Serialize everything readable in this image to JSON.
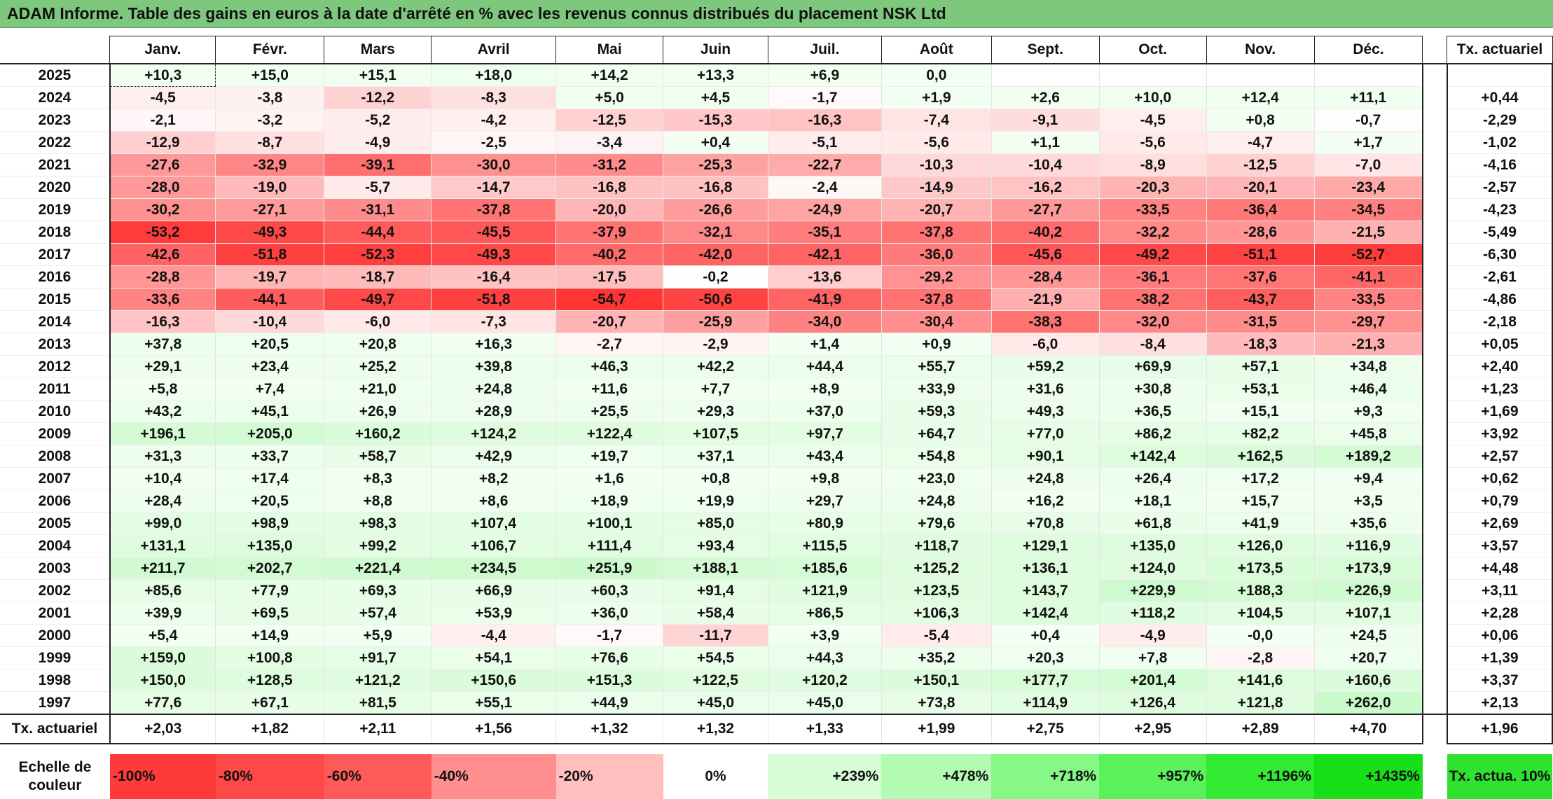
{
  "title": "ADAM Informe. Table des gains en euros à la date d'arrêté en % avec les revenus connus distribués du placement NSK Ltd",
  "months": [
    "Janv.",
    "Févr.",
    "Mars",
    "Avril",
    "Mai",
    "Juin",
    "Juil.",
    "Août",
    "Sept.",
    "Oct.",
    "Nov.",
    "Déc."
  ],
  "annual_header": "Tx. actuariel",
  "rows": [
    {
      "year": "2025",
      "values": [
        "+10,3",
        "+15,0",
        "+15,1",
        "+18,0",
        "+14,2",
        "+13,3",
        "+6,9",
        "0,0",
        "",
        "",
        "",
        ""
      ],
      "annual": ""
    },
    {
      "year": "2024",
      "values": [
        "-4,5",
        "-3,8",
        "-12,2",
        "-8,3",
        "+5,0",
        "+4,5",
        "-1,7",
        "+1,9",
        "+2,6",
        "+10,0",
        "+12,4",
        "+11,1"
      ],
      "annual": "+0,44"
    },
    {
      "year": "2023",
      "values": [
        "-2,1",
        "-3,2",
        "-5,2",
        "-4,2",
        "-12,5",
        "-15,3",
        "-16,3",
        "-7,4",
        "-9,1",
        "-4,5",
        "+0,8",
        "-0,7"
      ],
      "annual": "-2,29"
    },
    {
      "year": "2022",
      "values": [
        "-12,9",
        "-8,7",
        "-4,9",
        "-2,5",
        "-3,4",
        "+0,4",
        "-5,1",
        "-5,6",
        "+1,1",
        "-5,6",
        "-4,7",
        "+1,7"
      ],
      "annual": "-1,02"
    },
    {
      "year": "2021",
      "values": [
        "-27,6",
        "-32,9",
        "-39,1",
        "-30,0",
        "-31,2",
        "-25,3",
        "-22,7",
        "-10,3",
        "-10,4",
        "-8,9",
        "-12,5",
        "-7,0"
      ],
      "annual": "-4,16"
    },
    {
      "year": "2020",
      "values": [
        "-28,0",
        "-19,0",
        "-5,7",
        "-14,7",
        "-16,8",
        "-16,8",
        "-2,4",
        "-14,9",
        "-16,2",
        "-20,3",
        "-20,1",
        "-23,4"
      ],
      "annual": "-2,57"
    },
    {
      "year": "2019",
      "values": [
        "-30,2",
        "-27,1",
        "-31,1",
        "-37,8",
        "-20,0",
        "-26,6",
        "-24,9",
        "-20,7",
        "-27,7",
        "-33,5",
        "-36,4",
        "-34,5"
      ],
      "annual": "-4,23"
    },
    {
      "year": "2018",
      "values": [
        "-53,2",
        "-49,3",
        "-44,4",
        "-45,5",
        "-37,9",
        "-32,1",
        "-35,1",
        "-37,8",
        "-40,2",
        "-32,2",
        "-28,6",
        "-21,5"
      ],
      "annual": "-5,49"
    },
    {
      "year": "2017",
      "values": [
        "-42,6",
        "-51,8",
        "-52,3",
        "-49,3",
        "-40,2",
        "-42,0",
        "-42,1",
        "-36,0",
        "-45,6",
        "-49,2",
        "-51,1",
        "-52,7"
      ],
      "annual": "-6,30"
    },
    {
      "year": "2016",
      "values": [
        "-28,8",
        "-19,7",
        "-18,7",
        "-16,4",
        "-17,5",
        "-0,2",
        "-13,6",
        "-29,2",
        "-28,4",
        "-36,1",
        "-37,6",
        "-41,1"
      ],
      "annual": "-2,61"
    },
    {
      "year": "2015",
      "values": [
        "-33,6",
        "-44,1",
        "-49,7",
        "-51,8",
        "-54,7",
        "-50,6",
        "-41,9",
        "-37,8",
        "-21,9",
        "-38,2",
        "-43,7",
        "-33,5"
      ],
      "annual": "-4,86"
    },
    {
      "year": "2014",
      "values": [
        "-16,3",
        "-10,4",
        "-6,0",
        "-7,3",
        "-20,7",
        "-25,9",
        "-34,0",
        "-30,4",
        "-38,3",
        "-32,0",
        "-31,5",
        "-29,7"
      ],
      "annual": "-2,18"
    },
    {
      "year": "2013",
      "values": [
        "+37,8",
        "+20,5",
        "+20,8",
        "+16,3",
        "-2,7",
        "-2,9",
        "+1,4",
        "+0,9",
        "-6,0",
        "-8,4",
        "-18,3",
        "-21,3"
      ],
      "annual": "+0,05"
    },
    {
      "year": "2012",
      "values": [
        "+29,1",
        "+23,4",
        "+25,2",
        "+39,8",
        "+46,3",
        "+42,2",
        "+44,4",
        "+55,7",
        "+59,2",
        "+69,9",
        "+57,1",
        "+34,8"
      ],
      "annual": "+2,40"
    },
    {
      "year": "2011",
      "values": [
        "+5,8",
        "+7,4",
        "+21,0",
        "+24,8",
        "+11,6",
        "+7,7",
        "+8,9",
        "+33,9",
        "+31,6",
        "+30,8",
        "+53,1",
        "+46,4"
      ],
      "annual": "+1,23"
    },
    {
      "year": "2010",
      "values": [
        "+43,2",
        "+45,1",
        "+26,9",
        "+28,9",
        "+25,5",
        "+29,3",
        "+37,0",
        "+59,3",
        "+49,3",
        "+36,5",
        "+15,1",
        "+9,3"
      ],
      "annual": "+1,69"
    },
    {
      "year": "2009",
      "values": [
        "+196,1",
        "+205,0",
        "+160,2",
        "+124,2",
        "+122,4",
        "+107,5",
        "+97,7",
        "+64,7",
        "+77,0",
        "+86,2",
        "+82,2",
        "+45,8"
      ],
      "annual": "+3,92"
    },
    {
      "year": "2008",
      "values": [
        "+31,3",
        "+33,7",
        "+58,7",
        "+42,9",
        "+19,7",
        "+37,1",
        "+43,4",
        "+54,8",
        "+90,1",
        "+142,4",
        "+162,5",
        "+189,2"
      ],
      "annual": "+2,57"
    },
    {
      "year": "2007",
      "values": [
        "+10,4",
        "+17,4",
        "+8,3",
        "+8,2",
        "+1,6",
        "+0,8",
        "+9,8",
        "+23,0",
        "+24,8",
        "+26,4",
        "+17,2",
        "+9,4"
      ],
      "annual": "+0,62"
    },
    {
      "year": "2006",
      "values": [
        "+28,4",
        "+20,5",
        "+8,8",
        "+8,6",
        "+18,9",
        "+19,9",
        "+29,7",
        "+24,8",
        "+16,2",
        "+18,1",
        "+15,7",
        "+3,5"
      ],
      "annual": "+0,79"
    },
    {
      "year": "2005",
      "values": [
        "+99,0",
        "+98,9",
        "+98,3",
        "+107,4",
        "+100,1",
        "+85,0",
        "+80,9",
        "+79,6",
        "+70,8",
        "+61,8",
        "+41,9",
        "+35,6"
      ],
      "annual": "+2,69"
    },
    {
      "year": "2004",
      "values": [
        "+131,1",
        "+135,0",
        "+99,2",
        "+106,7",
        "+111,4",
        "+93,4",
        "+115,5",
        "+118,7",
        "+129,1",
        "+135,0",
        "+126,0",
        "+116,9"
      ],
      "annual": "+3,57"
    },
    {
      "year": "2003",
      "values": [
        "+211,7",
        "+202,7",
        "+221,4",
        "+234,5",
        "+251,9",
        "+188,1",
        "+185,6",
        "+125,2",
        "+136,1",
        "+124,0",
        "+173,5",
        "+173,9"
      ],
      "annual": "+4,48"
    },
    {
      "year": "2002",
      "values": [
        "+85,6",
        "+77,9",
        "+69,3",
        "+66,9",
        "+60,3",
        "+91,4",
        "+121,9",
        "+123,5",
        "+143,7",
        "+229,9",
        "+188,3",
        "+226,9"
      ],
      "annual": "+3,11"
    },
    {
      "year": "2001",
      "values": [
        "+39,9",
        "+69,5",
        "+57,4",
        "+53,9",
        "+36,0",
        "+58,4",
        "+86,5",
        "+106,3",
        "+142,4",
        "+118,2",
        "+104,5",
        "+107,1"
      ],
      "annual": "+2,28"
    },
    {
      "year": "2000",
      "values": [
        "+5,4",
        "+14,9",
        "+5,9",
        "-4,4",
        "-1,7",
        "-11,7",
        "+3,9",
        "-5,4",
        "+0,4",
        "-4,9",
        "-0,0",
        "+24,5"
      ],
      "annual": "+0,06"
    },
    {
      "year": "1999",
      "values": [
        "+159,0",
        "+100,8",
        "+91,7",
        "+54,1",
        "+76,6",
        "+54,5",
        "+44,3",
        "+35,2",
        "+20,3",
        "+7,8",
        "-2,8",
        "+20,7"
      ],
      "annual": "+1,39"
    },
    {
      "year": "1998",
      "values": [
        "+150,0",
        "+128,5",
        "+121,2",
        "+150,6",
        "+151,3",
        "+122,5",
        "+120,2",
        "+150,1",
        "+177,7",
        "+201,4",
        "+141,6",
        "+160,6"
      ],
      "annual": "+3,37"
    },
    {
      "year": "1997",
      "values": [
        "+77,6",
        "+67,1",
        "+81,5",
        "+55,1",
        "+44,9",
        "+45,0",
        "+45,0",
        "+73,8",
        "+114,9",
        "+126,4",
        "+121,8",
        "+262,0"
      ],
      "annual": "+2,13"
    }
  ],
  "footer": {
    "label": "Tx. actuariel",
    "values": [
      "+2,03",
      "+1,82",
      "+2,11",
      "+1,56",
      "+1,32",
      "+1,32",
      "+1,33",
      "+1,99",
      "+2,75",
      "+2,95",
      "+2,89",
      "+4,70"
    ],
    "annual": "+1,96"
  },
  "legend": {
    "label": "Echelle de couleur",
    "entries": [
      {
        "text": "-100%",
        "color": "#ff3a3a",
        "kind": "neg"
      },
      {
        "text": "-80%",
        "color": "#ff4848",
        "kind": "neg"
      },
      {
        "text": "-60%",
        "color": "#ff5a5a",
        "kind": "neg"
      },
      {
        "text": "-40%",
        "color": "#ff8f8f",
        "kind": "neg"
      },
      {
        "text": "-20%",
        "color": "#ffbfbf",
        "kind": "neg"
      },
      {
        "text": "0%",
        "color": "#ffffff",
        "kind": "zero"
      },
      {
        "text": "+239%",
        "color": "#d6fdd6",
        "kind": "pos"
      },
      {
        "text": "+478%",
        "color": "#b3fbb3",
        "kind": "pos"
      },
      {
        "text": "+718%",
        "color": "#86f886",
        "kind": "pos"
      },
      {
        "text": "+957%",
        "color": "#5af25a",
        "kind": "pos"
      },
      {
        "text": "+1196%",
        "color": "#33ea33",
        "kind": "pos"
      },
      {
        "text": "+1435%",
        "color": "#18e018",
        "kind": "pos"
      }
    ],
    "annual_label": "Tx. actua. 10%",
    "annual_color": "#2fe22f"
  }
}
